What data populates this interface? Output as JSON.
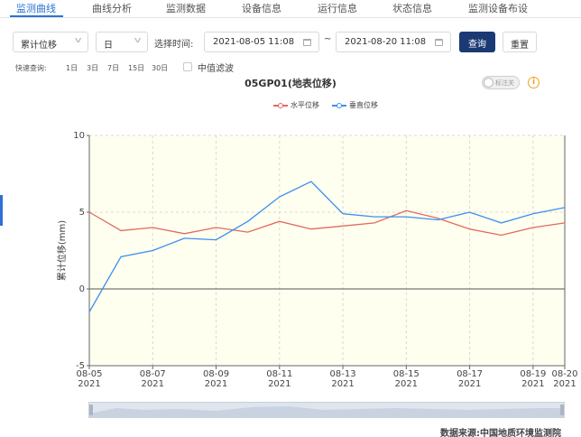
{
  "tabs": [
    {
      "label": "监测曲线"
    },
    {
      "label": "曲线分析"
    },
    {
      "label": "监测数据"
    },
    {
      "label": "设备信息"
    },
    {
      "label": "运行信息"
    },
    {
      "label": "状态信息"
    },
    {
      "label": "监测设备布设"
    }
  ],
  "filters": {
    "type_select": "累计位移",
    "interval_select": "日",
    "time_label": "选择时间:",
    "start_date": "2021-08-05 11:08",
    "range_separator": "~",
    "end_date": "2021-08-20 11:08",
    "query_button": "查询",
    "reset_button": "重置"
  },
  "quick": {
    "label": "快速查询:",
    "options": [
      "1日",
      "3日",
      "7日",
      "15日",
      "30日"
    ],
    "median_filter_label": "中值滤波"
  },
  "chart_header": {
    "title": "05GP01(地表位移)",
    "toggle_label": "标注关",
    "info_icon": "info-icon"
  },
  "colors": {
    "accent": "#2a72d4",
    "primary_button": "#1b3a73",
    "series_horizontal": "#e06a5c",
    "series_vertical": "#3b8ff0",
    "plot_background": "#fffff0"
  },
  "chart_data": {
    "type": "line",
    "ylabel": "累计位移(mm)",
    "ylim": [
      -5,
      10
    ],
    "y_ticks": [
      "10",
      "5",
      "0",
      "-5"
    ],
    "x_tick_labels": [
      {
        "date": "08-05",
        "year": "2021"
      },
      {
        "date": "08-07",
        "year": "2021"
      },
      {
        "date": "08-09",
        "year": "2021"
      },
      {
        "date": "08-11",
        "year": "2021"
      },
      {
        "date": "08-13",
        "year": "2021"
      },
      {
        "date": "08-15",
        "year": "2021"
      },
      {
        "date": "08-17",
        "year": "2021"
      },
      {
        "date": "08-19",
        "year": "2021"
      },
      {
        "date": "08-20",
        "year": "2021"
      }
    ],
    "x": [
      "2021-08-05",
      "2021-08-06",
      "2021-08-07",
      "2021-08-08",
      "2021-08-09",
      "2021-08-10",
      "2021-08-11",
      "2021-08-12",
      "2021-08-13",
      "2021-08-14",
      "2021-08-15",
      "2021-08-16",
      "2021-08-17",
      "2021-08-18",
      "2021-08-19",
      "2021-08-20"
    ],
    "series": [
      {
        "name": "水平位移",
        "color": "#e06a5c",
        "values": [
          5.0,
          3.8,
          4.0,
          3.6,
          4.0,
          3.7,
          4.4,
          3.9,
          4.1,
          4.3,
          5.1,
          4.6,
          3.9,
          3.5,
          4.0,
          4.3
        ]
      },
      {
        "name": "垂直位移",
        "color": "#3b8ff0",
        "values": [
          -1.5,
          2.1,
          2.5,
          3.3,
          3.2,
          4.4,
          6.0,
          7.0,
          4.9,
          4.7,
          4.7,
          4.5,
          5.0,
          4.3,
          4.9,
          5.3
        ]
      }
    ],
    "grid": true,
    "legend_position": "top-center"
  },
  "footer": {
    "source": "数据来源:中国地质环境监测院"
  }
}
